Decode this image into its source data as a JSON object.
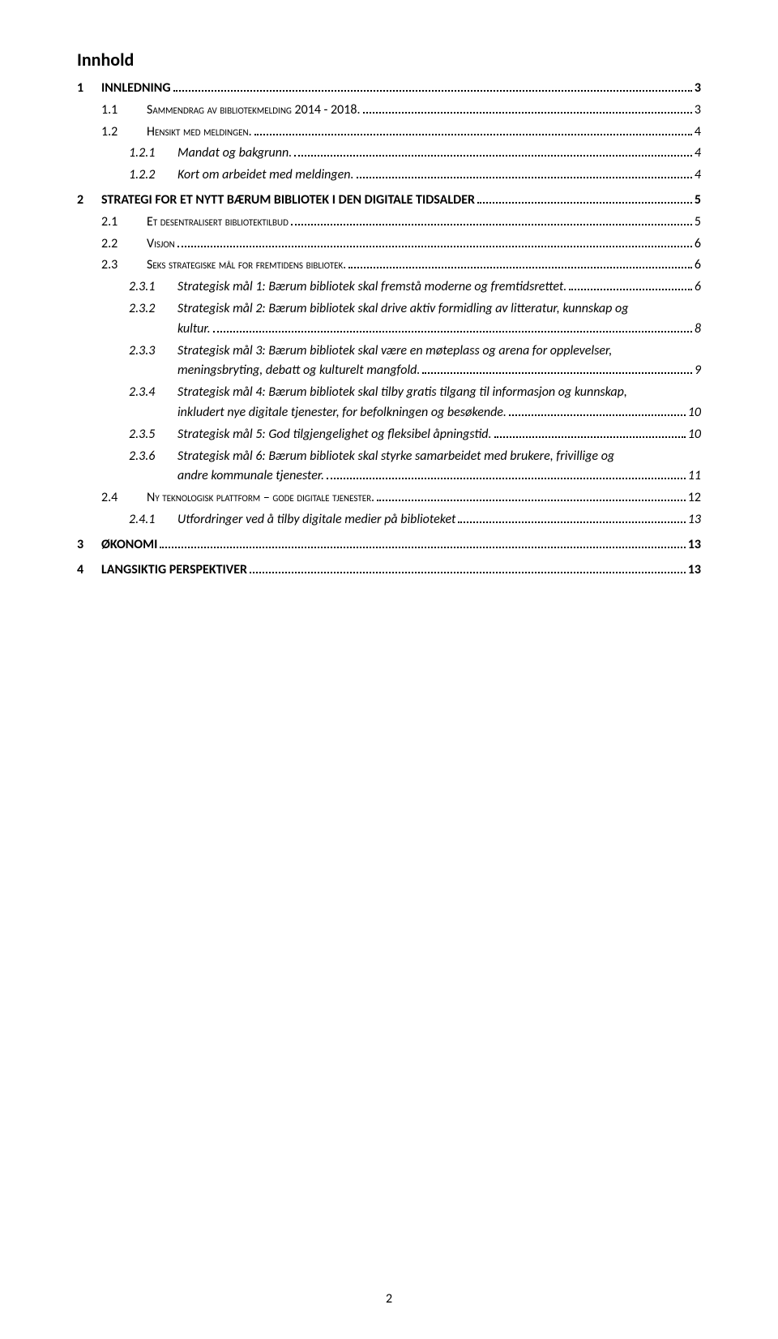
{
  "title": "Innhold",
  "page_number": "2",
  "entries": [
    {
      "level": 1,
      "num": "1",
      "label": "INNLEDNING",
      "page": "3",
      "bold": true,
      "spacer_before": false
    },
    {
      "level": 2,
      "num": "1.1",
      "label": "Sammendrag av bibliotekmelding 2014 - 2018.",
      "page": "3",
      "smallcaps": true
    },
    {
      "level": 2,
      "num": "1.2",
      "label": "Hensikt med meldingen.",
      "page": "4",
      "smallcaps": true
    },
    {
      "level": 3,
      "num": "1.2.1",
      "label": "Mandat og bakgrunn.",
      "page": "4",
      "italic": true
    },
    {
      "level": 3,
      "num": "1.2.2",
      "label": "Kort om arbeidet med meldingen.",
      "page": "4",
      "italic": true
    },
    {
      "level": 1,
      "num": "2",
      "label": "STRATEGI FOR ET NYTT BÆRUM BIBLIOTEK I DEN DIGITALE TIDSALDER",
      "page": "5",
      "bold": true,
      "spacer_before": true
    },
    {
      "level": 2,
      "num": "2.1",
      "label": "Et desentralisert bibliotektilbud",
      "page": "5",
      "smallcaps": true
    },
    {
      "level": 2,
      "num": "2.2",
      "label": "Visjon",
      "page": "6",
      "smallcaps": true
    },
    {
      "level": 2,
      "num": "2.3",
      "label": "Seks strategiske mål for fremtidens bibliotek.",
      "page": "6",
      "smallcaps": true
    },
    {
      "level": 3,
      "num": "2.3.1",
      "label": "Strategisk mål 1: Bærum bibliotek skal fremstå moderne og fremtidsrettet.",
      "page": "6",
      "italic": true
    },
    {
      "level": 3,
      "num": "2.3.2",
      "label_lines": [
        "Strategisk mål 2: Bærum bibliotek skal drive aktiv formidling av litteratur, kunnskap og",
        "kultur."
      ],
      "page": "8",
      "italic": true,
      "multiline": true
    },
    {
      "level": 3,
      "num": "2.3.3",
      "label_lines": [
        "Strategisk mål 3: Bærum bibliotek skal være en møteplass og arena for opplevelser,",
        "meningsbryting, debatt og kulturelt mangfold."
      ],
      "page": "9",
      "italic": true,
      "multiline": true
    },
    {
      "level": 3,
      "num": "2.3.4",
      "label_lines": [
        "Strategisk mål 4: Bærum bibliotek skal tilby gratis tilgang til informasjon og kunnskap,",
        "inkludert nye digitale tjenester, for befolkningen og besøkende."
      ],
      "page": "10",
      "italic": true,
      "multiline": true
    },
    {
      "level": 3,
      "num": "2.3.5",
      "label": "Strategisk mål 5: God tilgjengelighet og fleksibel åpningstid.",
      "page": "10",
      "italic": true
    },
    {
      "level": 3,
      "num": "2.3.6",
      "label_lines": [
        "Strategisk mål 6: Bærum bibliotek skal styrke samarbeidet med brukere, frivillige og",
        "andre kommunale tjenester."
      ],
      "page": "11",
      "italic": true,
      "multiline": true
    },
    {
      "level": 2,
      "num": "2.4",
      "label": "Ny teknologisk plattform – gode digitale tjenester.",
      "page": "12",
      "smallcaps": true
    },
    {
      "level": 3,
      "num": "2.4.1",
      "label": "Utfordringer ved å tilby digitale medier på biblioteket",
      "page": "13",
      "italic": true
    },
    {
      "level": 1,
      "num": "3",
      "label": "ØKONOMI",
      "page": "13",
      "bold": true,
      "spacer_before": true
    },
    {
      "level": 1,
      "num": "4",
      "label": "LANGSIKTIG PERSPEKTIVER",
      "page": "13",
      "bold": true,
      "spacer_before": true
    }
  ]
}
